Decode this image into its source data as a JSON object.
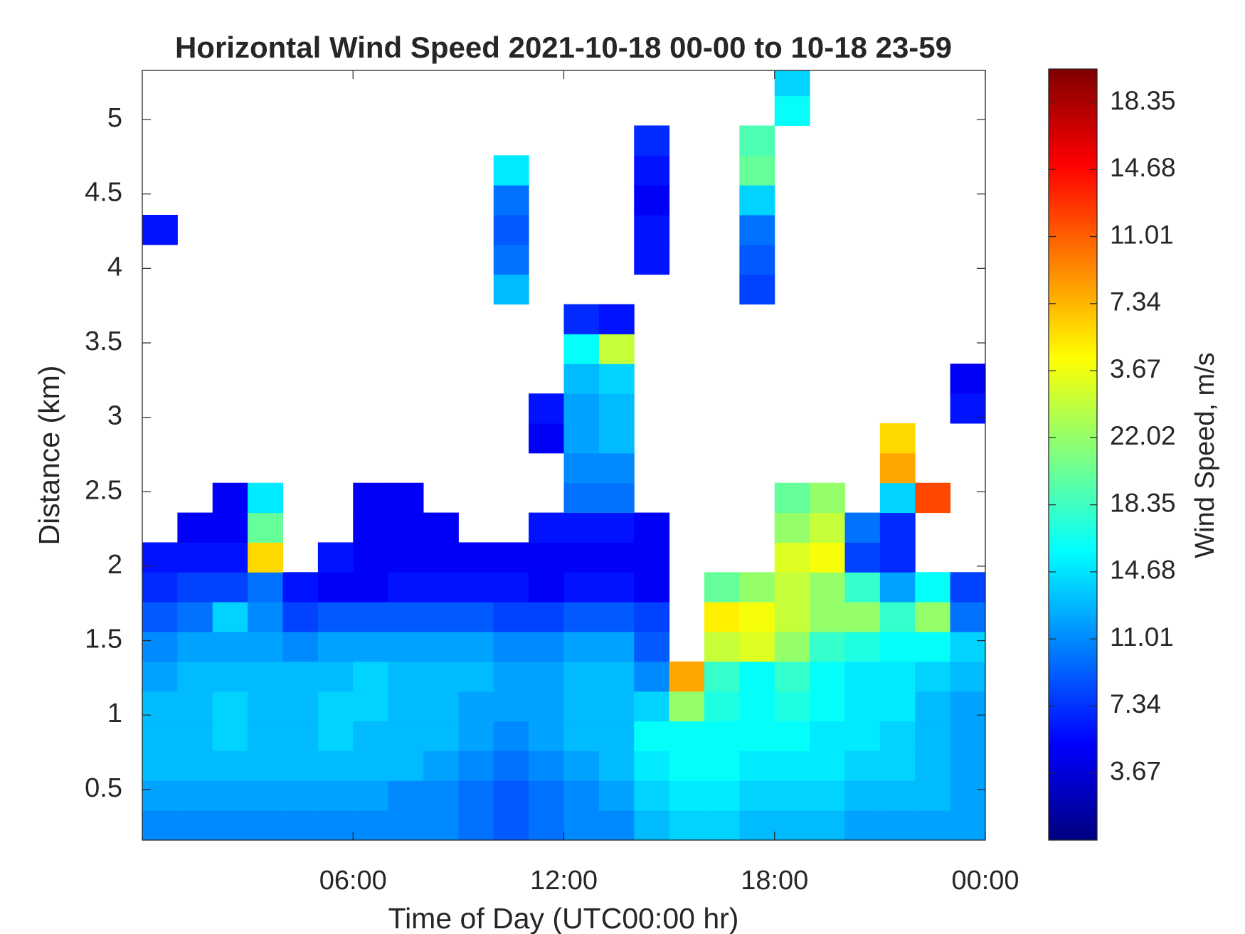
{
  "chart_data": {
    "type": "heatmap",
    "title": "Horizontal Wind Speed 2021-10-18 00-00 to 10-18 23-59",
    "xlabel": "Time of Day (UTC00:00 hr)",
    "ylabel": "Distance (km)",
    "colorbar_label": "Wind Speed, m/s",
    "colormap": "jet",
    "xlim": [
      0,
      24
    ],
    "xticks": [
      {
        "value": 6,
        "label": "06:00"
      },
      {
        "value": 12,
        "label": "12:00"
      },
      {
        "value": 18,
        "label": "18:00"
      },
      {
        "value": 24,
        "label": "00:00"
      }
    ],
    "ylim": [
      0.16,
      5.33
    ],
    "yticks": [
      0.5,
      1,
      1.5,
      2,
      2.5,
      3,
      3.5,
      4,
      4.5,
      5
    ],
    "clim": [
      0,
      42.2
    ],
    "cticks": [
      3.67,
      7.34,
      11.01,
      14.68,
      18.35,
      22.02,
      {
        "value": 25.69,
        "label": "3.67"
      },
      {
        "value": 29.36,
        "label": "7.34"
      },
      {
        "value": 33.03,
        "label": "11.01"
      },
      {
        "value": 36.7,
        "label": "14.68"
      },
      {
        "value": 40.37,
        "label": "18.35"
      }
    ],
    "x": [
      0.5,
      1.5,
      2.5,
      3.5,
      4.5,
      5.5,
      6.5,
      7.5,
      8.5,
      9.5,
      10.5,
      11.5,
      12.5,
      13.5,
      14.5,
      15.5,
      16.5,
      17.5,
      18.5,
      19.5,
      20.5,
      21.5,
      22.5,
      23.5
    ],
    "y": [
      0.26,
      0.46,
      0.66,
      0.86,
      1.06,
      1.26,
      1.46,
      1.66,
      1.86,
      2.06,
      2.26,
      2.46,
      2.66,
      2.86,
      3.06,
      3.26,
      3.46,
      3.66,
      3.86,
      4.06,
      4.26,
      4.46,
      4.66,
      4.86,
      5.06,
      5.26
    ],
    "z": [
      [
        11,
        11,
        11,
        11,
        11,
        11,
        11,
        11,
        11,
        10,
        9,
        10,
        11,
        11,
        13,
        14,
        14,
        13,
        13,
        13,
        12,
        12,
        12,
        12
      ],
      [
        12,
        12,
        12,
        12,
        12,
        12,
        12,
        11,
        11,
        10,
        9,
        10,
        11,
        12,
        14,
        15,
        15,
        14,
        14,
        14,
        13,
        13,
        13,
        12
      ],
      [
        13,
        13,
        13,
        13,
        13,
        13,
        13,
        13,
        12,
        11,
        10,
        11,
        12,
        13,
        15,
        16,
        16,
        15,
        15,
        15,
        14,
        14,
        13,
        12
      ],
      [
        13,
        13,
        14,
        13,
        13,
        14,
        13,
        13,
        13,
        12,
        11,
        12,
        13,
        13,
        16,
        16,
        16,
        16,
        16,
        15,
        15,
        14,
        13,
        12
      ],
      [
        13,
        13,
        14,
        13,
        13,
        14,
        14,
        13,
        13,
        12,
        12,
        12,
        13,
        13,
        14,
        22,
        17,
        16,
        17,
        16,
        15,
        15,
        13,
        12
      ],
      [
        12,
        13,
        13,
        13,
        13,
        13,
        14,
        13,
        13,
        13,
        12,
        12,
        13,
        13,
        11,
        30,
        18,
        16,
        18,
        16,
        15,
        15,
        14,
        13
      ],
      [
        11,
        12,
        12,
        12,
        11,
        12,
        12,
        12,
        12,
        12,
        11,
        11,
        12,
        12,
        9,
        null,
        24,
        25,
        22,
        18,
        17,
        16,
        16,
        14
      ],
      [
        9,
        10,
        14,
        11,
        8,
        9,
        9,
        9,
        9,
        9,
        8,
        8,
        9,
        9,
        8,
        null,
        27,
        26,
        24,
        22,
        22,
        18,
        22,
        10
      ],
      [
        7,
        8,
        8,
        10,
        6,
        5,
        5,
        6,
        6,
        6,
        6,
        5,
        6,
        6,
        5,
        null,
        20,
        22,
        24,
        22,
        18,
        12,
        16,
        8
      ],
      [
        6,
        6,
        6,
        28,
        null,
        6,
        5,
        5,
        5,
        5,
        5,
        5,
        5,
        5,
        5,
        null,
        null,
        null,
        25,
        26,
        8,
        7,
        null,
        null
      ],
      [
        null,
        5,
        5,
        20,
        null,
        null,
        5,
        5,
        5,
        null,
        null,
        6,
        6,
        6,
        5,
        null,
        null,
        null,
        22,
        24,
        10,
        7,
        null,
        null
      ],
      [
        null,
        null,
        5,
        15,
        null,
        null,
        5,
        5,
        null,
        null,
        null,
        null,
        10,
        10,
        null,
        null,
        null,
        null,
        20,
        22,
        null,
        14,
        34,
        null
      ],
      [
        null,
        null,
        null,
        null,
        null,
        null,
        null,
        null,
        null,
        null,
        null,
        null,
        11,
        11,
        null,
        null,
        null,
        null,
        null,
        null,
        null,
        30,
        null,
        null
      ],
      [
        null,
        null,
        null,
        null,
        null,
        null,
        null,
        null,
        null,
        null,
        null,
        5,
        12,
        13,
        null,
        null,
        null,
        null,
        null,
        null,
        null,
        28,
        null,
        null
      ],
      [
        null,
        null,
        null,
        null,
        null,
        null,
        null,
        null,
        null,
        null,
        null,
        6,
        12,
        13,
        null,
        null,
        null,
        null,
        null,
        null,
        null,
        null,
        null,
        6
      ],
      [
        null,
        null,
        null,
        null,
        null,
        null,
        null,
        null,
        null,
        null,
        null,
        null,
        13,
        14,
        null,
        null,
        null,
        null,
        null,
        null,
        null,
        null,
        null,
        5
      ],
      [
        null,
        null,
        null,
        null,
        null,
        null,
        null,
        null,
        null,
        null,
        null,
        null,
        16,
        24,
        null,
        null,
        null,
        null,
        null,
        null,
        null,
        null,
        null,
        null
      ],
      [
        null,
        null,
        null,
        null,
        null,
        null,
        null,
        null,
        null,
        null,
        null,
        null,
        7,
        6,
        null,
        null,
        null,
        null,
        null,
        null,
        null,
        null,
        null,
        null
      ],
      [
        null,
        null,
        null,
        null,
        null,
        null,
        null,
        null,
        null,
        null,
        13,
        null,
        null,
        null,
        null,
        null,
        null,
        8,
        null,
        null,
        null,
        null,
        null,
        null
      ],
      [
        null,
        null,
        null,
        null,
        null,
        null,
        null,
        null,
        null,
        null,
        10,
        null,
        null,
        null,
        6,
        null,
        null,
        9,
        null,
        null,
        null,
        null,
        null,
        null
      ],
      [
        6,
        null,
        null,
        null,
        null,
        null,
        null,
        null,
        null,
        null,
        9,
        null,
        null,
        null,
        6,
        null,
        null,
        10,
        null,
        null,
        null,
        null,
        null,
        null
      ],
      [
        null,
        null,
        null,
        null,
        null,
        null,
        null,
        null,
        null,
        null,
        10,
        null,
        null,
        null,
        5,
        null,
        null,
        14,
        null,
        null,
        null,
        null,
        null,
        null
      ],
      [
        null,
        null,
        null,
        null,
        null,
        null,
        null,
        null,
        null,
        null,
        15,
        null,
        null,
        null,
        6,
        null,
        null,
        20,
        null,
        null,
        null,
        null,
        null,
        null
      ],
      [
        null,
        null,
        null,
        null,
        null,
        null,
        null,
        null,
        null,
        null,
        null,
        null,
        null,
        null,
        7,
        null,
        null,
        19,
        null,
        null,
        null,
        null,
        null,
        null
      ],
      [
        null,
        null,
        null,
        null,
        null,
        null,
        null,
        null,
        null,
        null,
        null,
        null,
        null,
        null,
        null,
        null,
        null,
        null,
        16,
        null,
        null,
        null,
        null,
        null
      ],
      [
        null,
        null,
        null,
        null,
        null,
        null,
        null,
        null,
        null,
        null,
        null,
        null,
        null,
        null,
        null,
        null,
        null,
        null,
        14,
        null,
        null,
        null,
        null,
        null
      ]
    ]
  }
}
